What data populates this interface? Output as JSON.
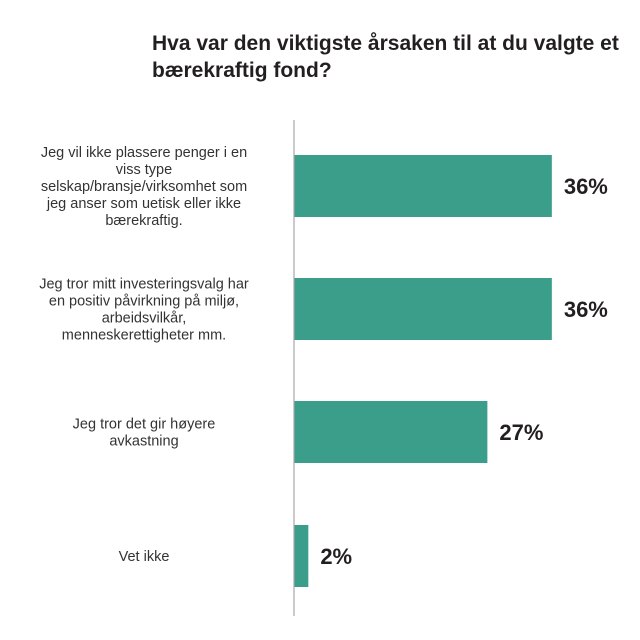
{
  "chart_data": {
    "type": "bar",
    "orientation": "horizontal",
    "title": "Hva var den viktigste årsaken til at du valgte et bærekraftig fond?",
    "categories": [
      "Jeg vil ikke plassere penger i en viss type selskap/bransje/virksomhet som jeg anser som uetisk eller ikke bærekraftig.",
      "Jeg tror mitt investeringsvalg har en positiv påvirkning på miljø, arbeidsvilkår, menneskerettigheter mm.",
      "Jeg tror det gir høyere avkastning",
      "Vet ikke"
    ],
    "category_lines": [
      [
        "Jeg vil ikke plassere penger i en",
        "viss type",
        "selskap/bransje/virksomhet som",
        "jeg anser som uetisk eller ikke",
        "bærekraftig."
      ],
      [
        "Jeg tror mitt investeringsvalg har",
        "en positiv påvirkning på miljø,",
        "arbeidsvilkår,",
        "menneskerettigheter mm."
      ],
      [
        "Jeg tror det gir høyere",
        "avkastning"
      ],
      [
        "Vet ikke"
      ]
    ],
    "values": [
      36,
      36,
      27,
      2
    ],
    "value_labels": [
      "36%",
      "36%",
      "27%",
      "2%"
    ],
    "unit": "%",
    "xlim": [
      0,
      37
    ],
    "bar_color": "#3b9e8a",
    "axis_color": "#a6a6a6",
    "grid": false,
    "legend": "none"
  }
}
